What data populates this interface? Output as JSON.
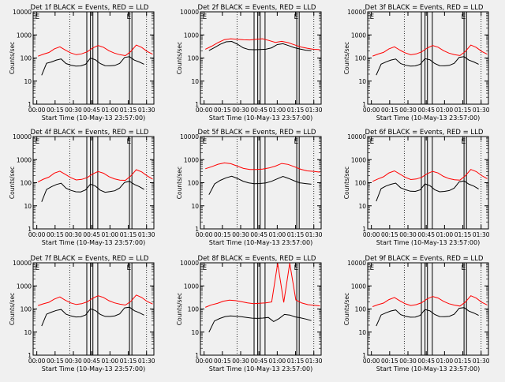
{
  "chart_data": [
    {
      "type": "line",
      "title": "Det 1f BLACK = Events, RED = LLD",
      "flags": [
        "E",
        "E"
      ],
      "series": [
        {
          "color": "#000000",
          "values": [
            18,
            60,
            70,
            85,
            95,
            60,
            50,
            45,
            45,
            52,
            95,
            80,
            55,
            45,
            45,
            48,
            60,
            110,
            120,
            85,
            70,
            55
          ]
        },
        {
          "color": "#ff0000",
          "values": [
            120,
            150,
            180,
            260,
            320,
            230,
            170,
            140,
            150,
            180,
            260,
            330,
            280,
            200,
            160,
            140,
            130,
            200,
            380,
            300,
            200,
            150
          ]
        }
      ]
    },
    {
      "type": "line",
      "title": "Det 2f BLACK = Events, RED = LLD",
      "flags": [
        "E",
        "E"
      ],
      "series": [
        {
          "color": "#000000",
          "values": [
            210,
            280,
            380,
            480,
            500,
            380,
            270,
            230,
            230,
            240,
            250,
            290,
            400,
            430,
            350,
            280,
            240,
            210,
            200
          ]
        },
        {
          "color": "#ff0000",
          "values": [
            240,
            320,
            450,
            600,
            650,
            620,
            600,
            600,
            650,
            700,
            600,
            500,
            550,
            480,
            380,
            300,
            260,
            230,
            220
          ]
        }
      ]
    },
    {
      "type": "line",
      "title": "Det 3f BLACK = Events, RED = LLD",
      "flags": [
        "E",
        "E"
      ],
      "series": [
        {
          "color": "#000000",
          "values": [
            18,
            55,
            70,
            85,
            95,
            60,
            50,
            45,
            45,
            52,
            90,
            80,
            55,
            45,
            45,
            48,
            60,
            110,
            120,
            85,
            70,
            55
          ]
        },
        {
          "color": "#ff0000",
          "values": [
            120,
            150,
            180,
            260,
            320,
            230,
            170,
            140,
            150,
            180,
            260,
            330,
            280,
            200,
            160,
            140,
            130,
            200,
            380,
            300,
            200,
            150
          ]
        }
      ]
    },
    {
      "type": "line",
      "title": "Det 4f BLACK = Events, RED = LLD",
      "flags": [
        "E",
        "E"
      ],
      "series": [
        {
          "color": "#000000",
          "values": [
            15,
            50,
            65,
            80,
            90,
            55,
            45,
            40,
            40,
            50,
            90,
            75,
            50,
            40,
            42,
            45,
            58,
            100,
            110,
            80,
            65,
            50
          ]
        },
        {
          "color": "#ff0000",
          "values": [
            110,
            140,
            170,
            250,
            300,
            220,
            160,
            130,
            140,
            170,
            250,
            320,
            270,
            190,
            150,
            130,
            125,
            190,
            350,
            280,
            190,
            140
          ]
        }
      ]
    },
    {
      "type": "line",
      "title": "Det 5f BLACK = Events, RED = LLD",
      "flags": [
        "E",
        "E"
      ],
      "series": [
        {
          "color": "#000000",
          "values": [
            30,
            90,
            130,
            170,
            200,
            160,
            120,
            100,
            90,
            90,
            95,
            110,
            140,
            180,
            150,
            120,
            100,
            95,
            90
          ]
        },
        {
          "color": "#ff0000",
          "values": [
            400,
            500,
            650,
            750,
            700,
            550,
            430,
            380,
            370,
            380,
            420,
            500,
            650,
            600,
            480,
            380,
            330,
            320,
            300
          ]
        }
      ]
    },
    {
      "type": "line",
      "title": "Det 6f BLACK = Events, RED = LLD",
      "flags": [
        "E",
        "E"
      ],
      "series": [
        {
          "color": "#000000",
          "values": [
            16,
            55,
            70,
            82,
            92,
            58,
            48,
            42,
            42,
            50,
            92,
            78,
            52,
            42,
            43,
            46,
            58,
            105,
            115,
            82,
            68,
            52
          ]
        },
        {
          "color": "#ff0000",
          "values": [
            115,
            145,
            175,
            255,
            310,
            225,
            165,
            135,
            145,
            175,
            255,
            325,
            275,
            195,
            155,
            135,
            128,
            195,
            360,
            290,
            195,
            145
          ]
        }
      ]
    },
    {
      "type": "line",
      "title": "Det 7f BLACK = Events, RED = LLD",
      "flags": [
        "E",
        "E"
      ],
      "series": [
        {
          "color": "#000000",
          "values": [
            18,
            60,
            75,
            90,
            100,
            62,
            52,
            46,
            46,
            54,
            98,
            82,
            56,
            46,
            46,
            50,
            62,
            115,
            125,
            88,
            72,
            56
          ]
        },
        {
          "color": "#ff0000",
          "values": [
            140,
            170,
            200,
            280,
            350,
            250,
            190,
            160,
            170,
            200,
            280,
            360,
            300,
            220,
            180,
            160,
            150,
            220,
            420,
            330,
            220,
            170
          ]
        }
      ]
    },
    {
      "type": "line",
      "title": "Det 8f BLACK = Events, RED = LLD",
      "flags": [
        "E",
        "E"
      ],
      "series": [
        {
          "color": "#000000",
          "values": [
            10,
            30,
            38,
            45,
            48,
            46,
            45,
            42,
            40,
            40,
            42,
            45,
            30,
            40,
            60,
            55,
            45,
            40,
            35,
            30
          ]
        },
        {
          "color": "#ff0000",
          "values": [
            120,
            150,
            170,
            210,
            230,
            220,
            200,
            180,
            170,
            180,
            190,
            210,
            10000,
            200,
            10000,
            250,
            180,
            150,
            140,
            130
          ]
        }
      ]
    },
    {
      "type": "line",
      "title": "Det 9f BLACK = Events, RED = LLD",
      "flags": [
        "E",
        "E"
      ],
      "series": [
        {
          "color": "#000000",
          "values": [
            18,
            55,
            70,
            85,
            95,
            60,
            50,
            45,
            45,
            52,
            92,
            80,
            55,
            45,
            45,
            48,
            60,
            110,
            120,
            85,
            70,
            55
          ]
        },
        {
          "color": "#ff0000",
          "values": [
            125,
            155,
            185,
            265,
            330,
            235,
            175,
            145,
            155,
            185,
            265,
            335,
            285,
            205,
            165,
            145,
            135,
            205,
            390,
            310,
            205,
            155
          ]
        }
      ]
    }
  ],
  "axes": {
    "ylabel": "Counts/sec",
    "xlabel": "Start Time (10-May-13 23:57:00)",
    "xticks": [
      "00:00",
      "00:15",
      "00:30",
      "00:45",
      "01:00",
      "01:15",
      "01:30"
    ],
    "yticks": [
      "1",
      "10",
      "100",
      "1000",
      "10000"
    ],
    "ylim": [
      1,
      10000
    ],
    "scale": "log"
  }
}
